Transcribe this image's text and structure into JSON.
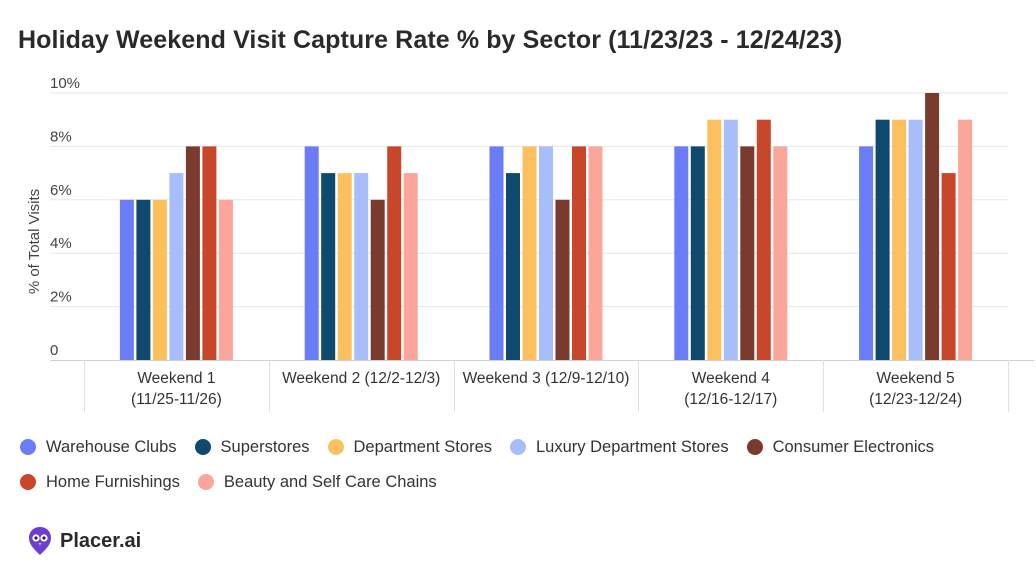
{
  "title": "Holiday Weekend Visit Capture Rate % by Sector (11/23/23 - 12/24/23)",
  "brand": {
    "name": "Placer.ai",
    "logo_icon": "placer-owl-icon"
  },
  "chart_data": {
    "type": "bar",
    "title": "Holiday Weekend Visit Capture Rate % by Sector (11/23/23 - 12/24/23)",
    "xlabel": "",
    "ylabel": "% of Total Visits",
    "ylim": [
      0,
      10
    ],
    "yticks": [
      0,
      2,
      4,
      6,
      8,
      10
    ],
    "ytick_labels": [
      "0",
      "2%",
      "4%",
      "6%",
      "8%",
      "10%"
    ],
    "grid": true,
    "legend_position": "bottom",
    "categories": [
      [
        "Weekend 1",
        "(11/25-11/26)"
      ],
      [
        "Weekend 2 (12/2-12/3)"
      ],
      [
        "Weekend 3 (12/9-12/10)"
      ],
      [
        "Weekend 4",
        "(12/16-12/17)"
      ],
      [
        "Weekend 5",
        "(12/23-12/24)"
      ]
    ],
    "series": [
      {
        "name": "Warehouse Clubs",
        "color": "#6b7cf7",
        "values": [
          6,
          8,
          8,
          8,
          8
        ]
      },
      {
        "name": "Superstores",
        "color": "#0f4a6e",
        "values": [
          6,
          7,
          7,
          8,
          9
        ]
      },
      {
        "name": "Department Stores",
        "color": "#fcc15e",
        "values": [
          6,
          7,
          8,
          9,
          9
        ]
      },
      {
        "name": "Luxury Department Stores",
        "color": "#a8befb",
        "values": [
          7,
          7,
          8,
          9,
          9
        ]
      },
      {
        "name": "Consumer Electronics",
        "color": "#7a3a2e",
        "values": [
          8,
          6,
          6,
          8,
          10
        ]
      },
      {
        "name": "Home Furnishings",
        "color": "#c8472b",
        "values": [
          8,
          8,
          8,
          9,
          7
        ]
      },
      {
        "name": "Beauty and Self Care Chains",
        "color": "#fca59b",
        "values": [
          6,
          7,
          8,
          8,
          9
        ]
      }
    ]
  }
}
